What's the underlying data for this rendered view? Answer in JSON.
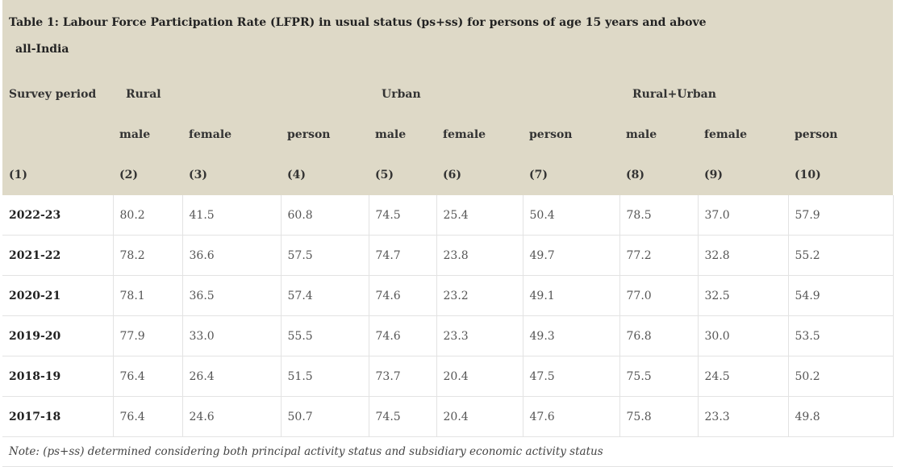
{
  "title_line1": "Table 1: Labour Force Participation Rate (LFPR) in usual status (ps+ss) for persons of age 15 years and above",
  "title_line2": "all-India",
  "header": {
    "survey_period": "Survey period",
    "groups": [
      "Rural",
      "Urban",
      "Rural+Urban"
    ],
    "sub": [
      "male",
      "female",
      "person",
      "male",
      "female",
      "person",
      "male",
      "female",
      "person"
    ],
    "numbers": [
      "(1)",
      "(2)",
      "(3)",
      "(4)",
      "(5)",
      "(6)",
      "(7)",
      "(8)",
      "(9)",
      "(10)"
    ]
  },
  "rows": [
    {
      "period": "2022-23",
      "values": [
        "80.2",
        "41.5",
        "60.8",
        "74.5",
        "25.4",
        "50.4",
        "78.5",
        "37.0",
        "57.9"
      ]
    },
    {
      "period": "2021-22",
      "values": [
        "78.2",
        "36.6",
        "57.5",
        "74.7",
        "23.8",
        "49.7",
        "77.2",
        "32.8",
        "55.2"
      ]
    },
    {
      "period": "2020-21",
      "values": [
        "78.1",
        "36.5",
        "57.4",
        "74.6",
        "23.2",
        "49.1",
        "77.0",
        "32.5",
        "54.9"
      ]
    },
    {
      "period": "2019-20",
      "values": [
        "77.9",
        "33.0",
        "55.5",
        "74.6",
        "23.3",
        "49.3",
        "76.8",
        "30.0",
        "53.5"
      ]
    },
    {
      "period": "2018-19",
      "values": [
        "76.4",
        "26.4",
        "51.5",
        "73.7",
        "20.4",
        "47.5",
        "75.5",
        "24.5",
        "50.2"
      ]
    },
    {
      "period": "2017-18",
      "values": [
        "76.4",
        "24.6",
        "50.7",
        "74.5",
        "20.4",
        "47.6",
        "75.8",
        "23.3",
        "49.8"
      ]
    }
  ],
  "note": "Note: (ps+ss)  determined considering both principal activity status and subsidiary economic activity status"
}
